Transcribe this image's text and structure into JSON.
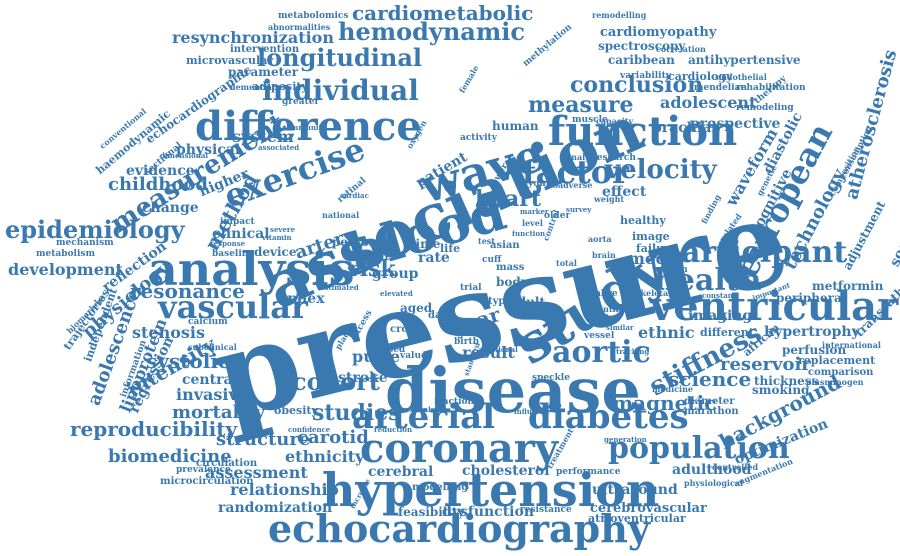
{
  "accent_color": "#3a78b0",
  "words": [
    "pressure",
    "disease",
    "association",
    "study",
    "analysis",
    "blood",
    "hypertension",
    "echocardiography",
    "coronary",
    "function",
    "ventricular",
    "arterial",
    "diabetes",
    "difference",
    "wave",
    "factor",
    "population",
    "aortic",
    "european",
    "participant",
    "health",
    "vascular",
    "exercise",
    "measurement",
    "hemodynamic",
    "longitudinal",
    "individual",
    "cardiometabolic",
    "resynchronization",
    "epidemiology",
    "cohort",
    "studies",
    "stiffness",
    "velocity",
    "conclusion",
    "measure",
    "heart",
    "risk",
    "method",
    "atherosclerosis",
    "technology",
    "reproducibility",
    "background",
    "magnetic",
    "science",
    "imaging",
    "adolescent",
    "adolescence",
    "intensity",
    "systolic",
    "resonance",
    "childhood",
    "physiology",
    "development",
    "structure",
    "mortality",
    "biomedicine",
    "relationship",
    "randomization",
    "carotid",
    "ethnicity",
    "assessment",
    "cerebral",
    "cholesterol",
    "dysfunction",
    "ultrasound",
    "feasibility",
    "cerebrovascular",
    "adulthood",
    "optimization",
    "reservoir",
    "ethnic",
    "model",
    "year",
    "result",
    "stroke",
    "pulse",
    "invasive",
    "central",
    "stenosis",
    "lipoprotein",
    "regression",
    "reflection",
    "change",
    "clinical",
    "artery",
    "index",
    "system",
    "physical",
    "evidence",
    "higher",
    "waveform",
    "prospective",
    "brachial",
    "human",
    "patient",
    "effect",
    "hypertrophy",
    "thickness",
    "smoking",
    "perfusion",
    "replacement",
    "comparison",
    "metformin",
    "transcatheter",
    "peripheral",
    "adjustment",
    "socioeconomic",
    "cognitive",
    "diastolic",
    "cardiomyopathy",
    "spectroscopy",
    "antihypertensive",
    "caribbean",
    "cardiology",
    "parameter",
    "adiposity",
    "microvascular",
    "intervention",
    "metabolomics",
    "abnormalities",
    "echocardiographic",
    "haemodynamic",
    "conventional",
    "sectional",
    "mechanism",
    "metabolism",
    "trajectories",
    "independent",
    "information",
    "biomarkers",
    "calcium",
    "baseline",
    "subclinical",
    "device",
    "person",
    "group",
    "event",
    "time",
    "obesity",
    "circulation",
    "prevalence",
    "microcirculation",
    "modelling",
    "performance",
    "controlled",
    "augmentation",
    "physiological",
    "resistance",
    "atrioventricular",
    "fraction",
    "speckle",
    "marathon",
    "diameter",
    "medicine",
    "plasminogen",
    "international",
    "different",
    "african",
    "mendelian",
    "rehabilitation",
    "variability",
    "endothelial",
    "therapy",
    "remodeling",
    "greater",
    "dementia",
    "methylation",
    "female",
    "correlation",
    "remodelling",
    "related",
    "composition",
    "consumption",
    "genetic",
    "finding",
    "failure",
    "image",
    "healthy",
    "woman",
    "constant",
    "important",
    "skeletal",
    "sabre",
    "intima",
    "vessel",
    "similar",
    "tracking",
    "adult",
    "body",
    "type",
    "mass",
    "cuff",
    "trial",
    "asian",
    "test",
    "rate",
    "life",
    "aged",
    "data",
    "cross",
    "birth",
    "based",
    "excess",
    "value",
    "young",
    "adverse",
    "older",
    "muscle",
    "capacity",
    "activity",
    "research",
    "analyse",
    "national",
    "retinal",
    "brain",
    "aorta",
    "total",
    "control",
    "marker",
    "level",
    "yoga",
    "survey",
    "weight",
    "plaque",
    "lower",
    "impact",
    "response",
    "vitamin",
    "severe",
    "treatment",
    "generation",
    "influence",
    "increase",
    "confidence",
    "reduction",
    "proximal",
    "standard",
    "additional",
    "cardiac",
    "dimensional",
    "associated",
    "community",
    "oxygen",
    "function",
    "elevated",
    "estimated"
  ]
}
